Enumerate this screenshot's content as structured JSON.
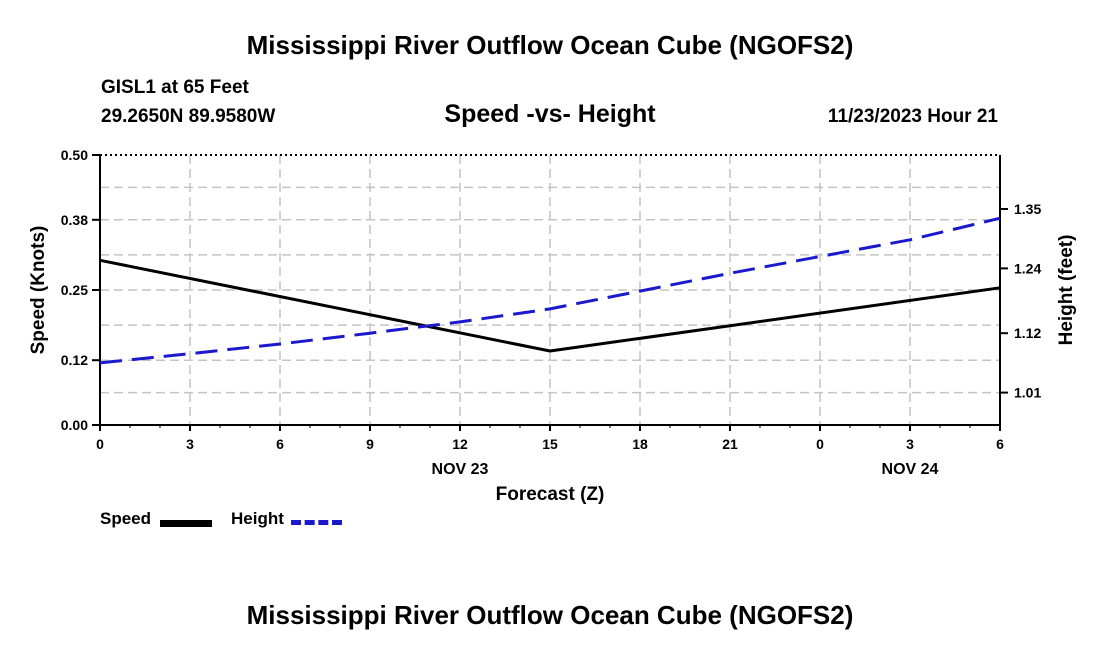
{
  "header": {
    "title": "Mississippi River Outflow Ocean Cube (NGOFS2)",
    "station": "GISL1 at 65 Feet",
    "coords": "29.2650N  89.9580W",
    "subtitle": "Speed -vs- Height",
    "date": "11/23/2023 Hour 21"
  },
  "footer": {
    "title": "Mississippi River Outflow Ocean Cube (NGOFS2)"
  },
  "legend": {
    "speed_label": "Speed",
    "height_label": "Height",
    "speed_color": "#000000",
    "height_color": "#1a1acc"
  },
  "chart_data": {
    "type": "line",
    "title": "Speed -vs- Height",
    "xlabel": "Forecast (Z)",
    "ylabel": "Speed (Knots)",
    "y2label": "Height (feet)",
    "x": [
      0,
      3,
      6,
      9,
      12,
      15,
      18,
      21,
      24,
      27,
      30
    ],
    "x_tick_labels": [
      "0",
      "3",
      "6",
      "9",
      "12",
      "15",
      "18",
      "21",
      "0",
      "3",
      "6"
    ],
    "date_labels": [
      {
        "x": 12,
        "label": "NOV 23"
      },
      {
        "x": 27,
        "label": "NOV 24"
      }
    ],
    "ylim": [
      0,
      0.5
    ],
    "yticks": [
      0.0,
      0.12,
      0.25,
      0.38,
      0.5
    ],
    "ytick_labels": [
      "0.00",
      "0.12",
      "0.25",
      "0.38",
      "0.50"
    ],
    "y2lim": [
      0.95,
      1.45
    ],
    "y2ticks": [
      1.01,
      1.12,
      1.24,
      1.35
    ],
    "y2tick_labels": [
      "1.01",
      "1.12",
      "1.24",
      "1.35"
    ],
    "grid": true,
    "series": [
      {
        "name": "Speed",
        "axis": "left",
        "style": "solid",
        "color": "#000000",
        "points": [
          [
            0,
            0.305
          ],
          [
            15,
            0.137
          ],
          [
            30,
            0.254
          ]
        ]
      },
      {
        "name": "Height",
        "axis": "right",
        "style": "dashed",
        "color": "#1a1acc",
        "points": [
          [
            0,
            1.065
          ],
          [
            3,
            1.082
          ],
          [
            6,
            1.1
          ],
          [
            9,
            1.12
          ],
          [
            12,
            1.141
          ],
          [
            15,
            1.165
          ],
          [
            18,
            1.198
          ],
          [
            21,
            1.231
          ],
          [
            24,
            1.262
          ],
          [
            27,
            1.293
          ],
          [
            30,
            1.333
          ]
        ]
      }
    ]
  }
}
